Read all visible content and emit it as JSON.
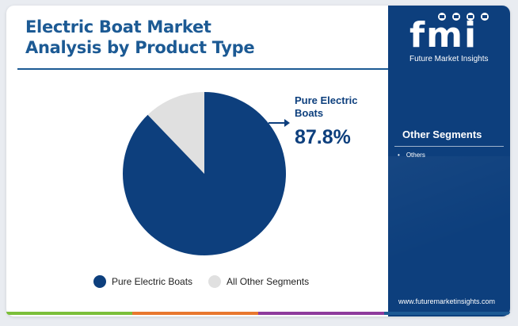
{
  "title_lines": [
    "Electric Boat Market",
    "Analysis by Product Type"
  ],
  "chart_data": {
    "type": "pie",
    "title": "Electric Boat Market Analysis by Product Type",
    "slices": [
      {
        "label": "Pure Electric Boats",
        "value": 87.8,
        "color": "#0d3f7d"
      },
      {
        "label": "All Other Segments",
        "value": 12.2,
        "color": "#e0e0e0"
      }
    ],
    "callout": {
      "label_lines": [
        "Pure Electric",
        "Boats"
      ],
      "value_text": "87.8%"
    },
    "legend": [
      {
        "label": "Pure Electric Boats",
        "color": "#0d3f7d"
      },
      {
        "label": "All Other Segments",
        "color": "#e0e0e0"
      }
    ],
    "legend_position": "bottom"
  },
  "sidebar": {
    "logo_letters": "fmi",
    "logo_name": "Future Market Insights",
    "segments_title": "Other Segments",
    "segments": [
      "Others"
    ],
    "website": "www.futuremarketinsights.com"
  },
  "colors": {
    "brand_blue": "#0d3f7d",
    "title_blue": "#1c5a94",
    "bottom_bar": [
      "#7bbf3a",
      "#e8772e",
      "#8e3b9c",
      "#1c5a94"
    ]
  }
}
